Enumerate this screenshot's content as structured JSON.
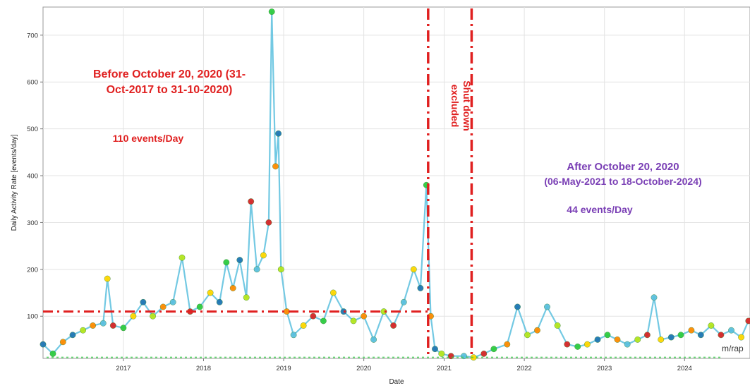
{
  "chart_data": {
    "type": "scatter",
    "xlabel": "Date",
    "ylabel": "Daily Activity Rate [events/day]",
    "x_tick_labels": [
      "2017",
      "2018",
      "2019",
      "2020",
      "2021",
      "2022",
      "2023",
      "2024"
    ],
    "y_tick_labels": [
      "100",
      "200",
      "300",
      "400",
      "500",
      "600",
      "700"
    ],
    "xlim": [
      "2016-01-01",
      "2024-10-25"
    ],
    "ylim": [
      10,
      760
    ],
    "grid": true,
    "watermark": "m/rap",
    "annotations": {
      "before_title": "Before October 20, 2020 (31-Oct-2017 to 31-10-2020)",
      "before_rate": "110 events/Day",
      "shutdown": "Shut down excluded",
      "after_title": "After October 20, 2020",
      "after_period": "(06-May-2021 to 18-October-2024)",
      "after_rate": "44 events/Day"
    },
    "reference_lines": [
      {
        "kind": "horizontal",
        "y": 110,
        "x_from": "2016-01-01",
        "x_to": "2020-11-01",
        "color": "#e02020",
        "style": "dash-dot"
      },
      {
        "kind": "vertical",
        "x": "2020-10-20",
        "color": "#e02020",
        "style": "dash-dot"
      },
      {
        "kind": "vertical",
        "x": "2021-05-06",
        "color": "#e02020",
        "style": "dash-dot"
      }
    ],
    "series": [
      {
        "color_scale": [
          "#1f77b4",
          "#5bc0de",
          "#2ecc40",
          "#b5e61d",
          "#ffd700",
          "#ff8c00",
          "#d62728"
        ],
        "points": [
          [
            "2016-01-01",
            40
          ],
          [
            "2016-02-15",
            20
          ],
          [
            "2016-04-01",
            45
          ],
          [
            "2016-05-15",
            60
          ],
          [
            "2016-07-01",
            70
          ],
          [
            "2016-08-15",
            80
          ],
          [
            "2016-10-01",
            85
          ],
          [
            "2016-10-20",
            180
          ],
          [
            "2016-11-15",
            80
          ],
          [
            "2017-01-01",
            75
          ],
          [
            "2017-02-15",
            100
          ],
          [
            "2017-04-01",
            130
          ],
          [
            "2017-05-15",
            100
          ],
          [
            "2017-07-01",
            120
          ],
          [
            "2017-08-15",
            130
          ],
          [
            "2017-09-25",
            225
          ],
          [
            "2017-11-01",
            110
          ],
          [
            "2017-12-15",
            120
          ],
          [
            "2018-02-01",
            150
          ],
          [
            "2018-03-15",
            130
          ],
          [
            "2018-04-15",
            215
          ],
          [
            "2018-05-15",
            160
          ],
          [
            "2018-06-15",
            220
          ],
          [
            "2018-07-15",
            140
          ],
          [
            "2018-08-05",
            345
          ],
          [
            "2018-09-01",
            200
          ],
          [
            "2018-10-01",
            230
          ],
          [
            "2018-10-25",
            300
          ],
          [
            "2018-11-08",
            750
          ],
          [
            "2018-11-25",
            420
          ],
          [
            "2018-12-08",
            490
          ],
          [
            "2018-12-20",
            200
          ],
          [
            "2019-01-15",
            110
          ],
          [
            "2019-02-15",
            60
          ],
          [
            "2019-04-01",
            80
          ],
          [
            "2019-05-15",
            100
          ],
          [
            "2019-07-01",
            90
          ],
          [
            "2019-08-15",
            150
          ],
          [
            "2019-10-01",
            110
          ],
          [
            "2019-11-15",
            90
          ],
          [
            "2020-01-01",
            100
          ],
          [
            "2020-02-15",
            50
          ],
          [
            "2020-04-01",
            110
          ],
          [
            "2020-05-15",
            80
          ],
          [
            "2020-07-01",
            130
          ],
          [
            "2020-08-15",
            200
          ],
          [
            "2020-09-15",
            160
          ],
          [
            "2020-10-12",
            380
          ],
          [
            "2020-11-01",
            100
          ],
          [
            "2020-11-20",
            30
          ],
          [
            "2020-12-20",
            20
          ],
          [
            "2021-02-01",
            15
          ],
          [
            "2021-04-01",
            15
          ],
          [
            "2021-05-15",
            12
          ],
          [
            "2021-07-01",
            20
          ],
          [
            "2021-08-15",
            30
          ],
          [
            "2021-10-15",
            40
          ],
          [
            "2021-12-01",
            120
          ],
          [
            "2022-01-15",
            60
          ],
          [
            "2022-03-01",
            70
          ],
          [
            "2022-04-15",
            120
          ],
          [
            "2022-06-01",
            80
          ],
          [
            "2022-07-15",
            40
          ],
          [
            "2022-09-01",
            35
          ],
          [
            "2022-10-15",
            40
          ],
          [
            "2022-12-01",
            50
          ],
          [
            "2023-01-15",
            60
          ],
          [
            "2023-03-01",
            50
          ],
          [
            "2023-04-15",
            40
          ],
          [
            "2023-06-01",
            50
          ],
          [
            "2023-07-15",
            60
          ],
          [
            "2023-08-15",
            140
          ],
          [
            "2023-09-15",
            50
          ],
          [
            "2023-11-01",
            55
          ],
          [
            "2023-12-15",
            60
          ],
          [
            "2024-02-01",
            70
          ],
          [
            "2024-03-15",
            60
          ],
          [
            "2024-05-01",
            80
          ],
          [
            "2024-06-15",
            60
          ],
          [
            "2024-08-01",
            70
          ],
          [
            "2024-09-15",
            55
          ],
          [
            "2024-10-18",
            90
          ]
        ]
      }
    ]
  }
}
